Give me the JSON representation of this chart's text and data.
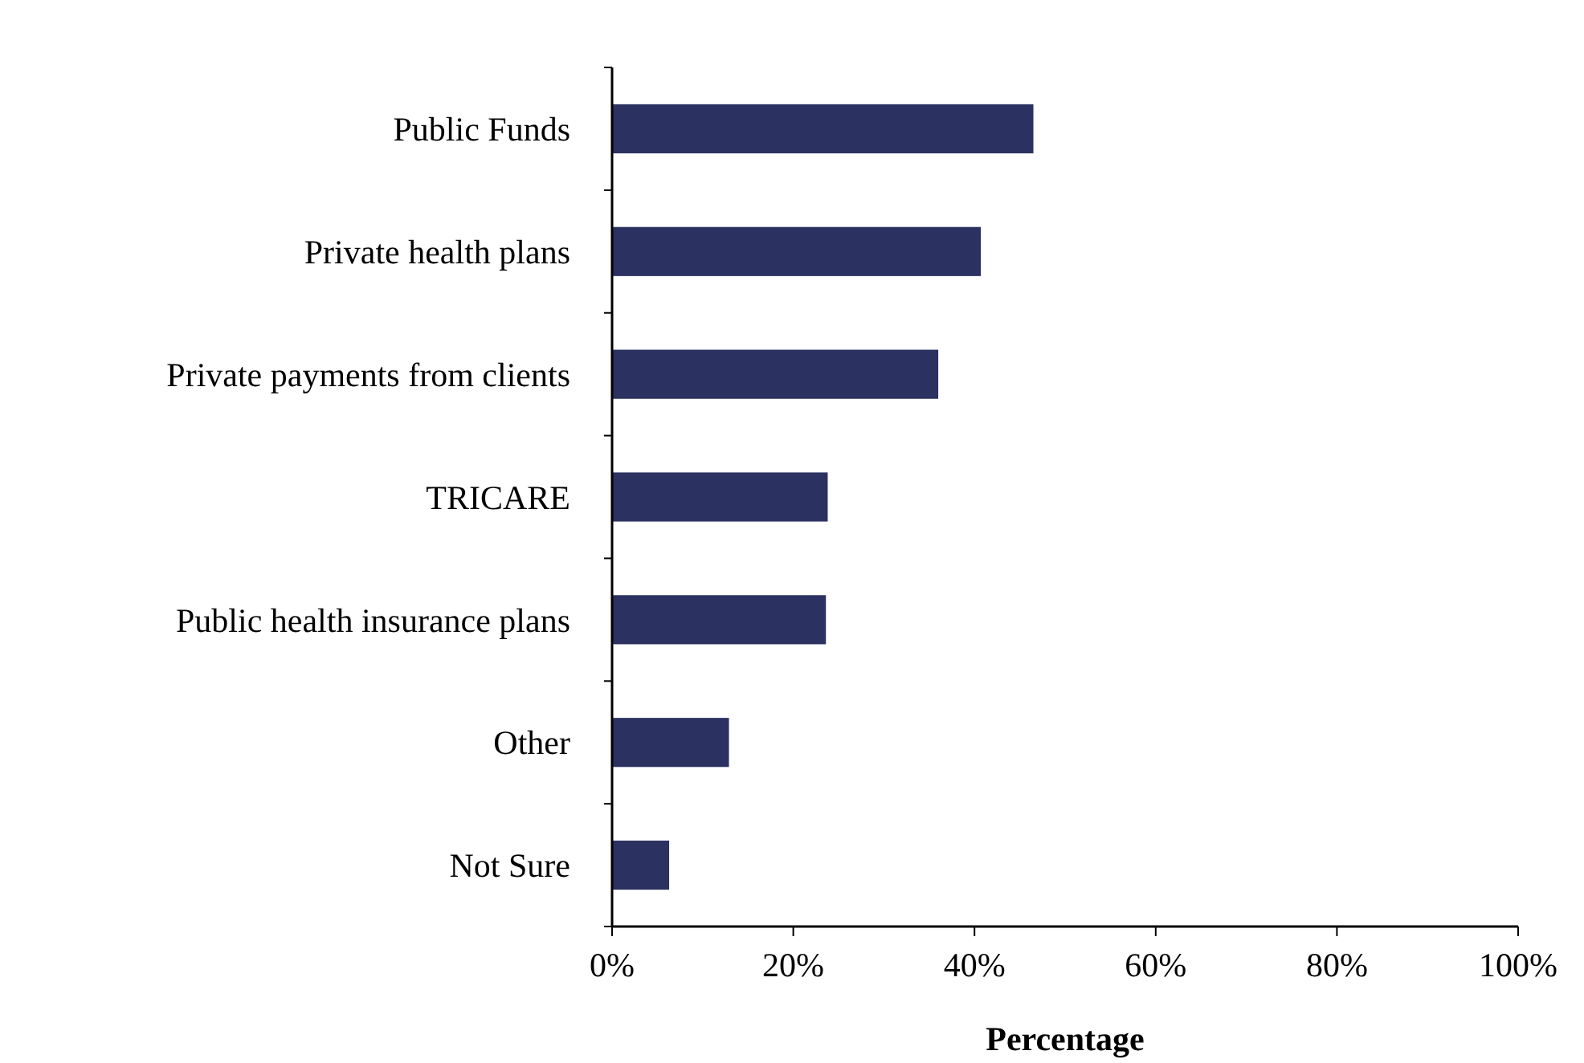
{
  "chart_data": {
    "type": "bar",
    "orientation": "horizontal",
    "xlabel": "Percentage",
    "categories": [
      "Public Funds",
      "Private health plans",
      "Private payments from clients",
      "TRICARE",
      "Public health insurance plans",
      "Other",
      "Not Sure"
    ],
    "values": [
      46.5,
      40.7,
      36,
      23.8,
      23.6,
      12.9,
      6.3
    ],
    "color": "#2b3160",
    "xlim": [
      0,
      100
    ],
    "xticks": [
      {
        "value": 0,
        "label": "0%"
      },
      {
        "value": 20,
        "label": "20%"
      },
      {
        "value": 40,
        "label": "40%"
      },
      {
        "value": 60,
        "label": "60%"
      },
      {
        "value": 80,
        "label": "80%"
      },
      {
        "value": 100,
        "label": "100%"
      }
    ],
    "grid": false
  }
}
